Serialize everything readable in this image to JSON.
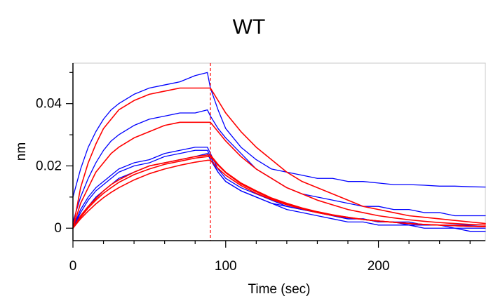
{
  "chart_data": {
    "type": "line",
    "title": "WT",
    "xlabel": "Time (sec)",
    "ylabel": "nm",
    "xlim": [
      0,
      270
    ],
    "ylim": [
      -0.004,
      0.053
    ],
    "xticks": [
      0,
      100,
      200
    ],
    "yticks": [
      0,
      0.02,
      0.04
    ],
    "xtick_labels": [
      "0",
      "100",
      "200"
    ],
    "ytick_labels": [
      "0",
      "0.02",
      "0.04"
    ],
    "dissociation_start_x": 90,
    "grid": false,
    "colors": {
      "data": "#0000ff",
      "fit": "#ff0000",
      "marker_line": "#ff0000",
      "axis": "#000000",
      "frame": "#c8c8c8"
    },
    "series": [
      {
        "role": "measured",
        "x": [
          0,
          5,
          10,
          15,
          20,
          25,
          30,
          40,
          50,
          60,
          70,
          80,
          88,
          90,
          95,
          100,
          110,
          120,
          130,
          140,
          150,
          160,
          170,
          180,
          190,
          200,
          210,
          220,
          230,
          240,
          250,
          260,
          270
        ],
        "y": [
          0.01,
          0.019,
          0.026,
          0.031,
          0.035,
          0.038,
          0.04,
          0.043,
          0.045,
          0.046,
          0.047,
          0.049,
          0.05,
          0.045,
          0.038,
          0.032,
          0.026,
          0.022,
          0.019,
          0.018,
          0.017,
          0.016,
          0.016,
          0.015,
          0.015,
          0.0145,
          0.014,
          0.014,
          0.0138,
          0.0135,
          0.0135,
          0.0133,
          0.0132
        ]
      },
      {
        "role": "measured",
        "x": [
          0,
          5,
          10,
          15,
          20,
          25,
          30,
          40,
          50,
          60,
          70,
          80,
          88,
          90,
          95,
          100,
          110,
          120,
          130,
          140,
          150,
          160,
          170,
          180,
          190,
          200,
          210,
          220,
          230,
          240,
          250,
          260,
          270
        ],
        "y": [
          0.002,
          0.01,
          0.016,
          0.021,
          0.025,
          0.028,
          0.03,
          0.033,
          0.035,
          0.036,
          0.037,
          0.037,
          0.038,
          0.036,
          0.032,
          0.029,
          0.024,
          0.019,
          0.016,
          0.013,
          0.011,
          0.01,
          0.009,
          0.008,
          0.007,
          0.007,
          0.006,
          0.006,
          0.005,
          0.005,
          0.004,
          0.004,
          0.004
        ]
      },
      {
        "role": "measured",
        "x": [
          0,
          5,
          10,
          15,
          20,
          25,
          30,
          40,
          50,
          60,
          70,
          80,
          88,
          90,
          95,
          100,
          110,
          120,
          130,
          140,
          150,
          160,
          170,
          180,
          190,
          200,
          210,
          220,
          230,
          240,
          250,
          260,
          270
        ],
        "y": [
          0.0,
          0.006,
          0.01,
          0.013,
          0.015,
          0.017,
          0.019,
          0.021,
          0.022,
          0.024,
          0.025,
          0.026,
          0.026,
          0.024,
          0.019,
          0.016,
          0.013,
          0.011,
          0.009,
          0.007,
          0.006,
          0.005,
          0.004,
          0.003,
          0.003,
          0.002,
          0.002,
          0.001,
          0.001,
          0.001,
          0.0,
          0.0,
          0.0
        ]
      },
      {
        "role": "measured",
        "x": [
          0,
          5,
          10,
          15,
          20,
          25,
          30,
          40,
          50,
          60,
          70,
          80,
          88,
          90,
          95,
          100,
          110,
          120,
          130,
          140,
          150,
          160,
          170,
          180,
          190,
          200,
          210,
          220,
          230,
          240,
          250,
          260,
          270
        ],
        "y": [
          0.0,
          0.005,
          0.009,
          0.012,
          0.014,
          0.016,
          0.018,
          0.02,
          0.021,
          0.023,
          0.024,
          0.025,
          0.025,
          0.023,
          0.018,
          0.015,
          0.012,
          0.01,
          0.008,
          0.006,
          0.005,
          0.004,
          0.003,
          0.002,
          0.002,
          0.001,
          0.001,
          0.001,
          0.0,
          0.0,
          0.0,
          -0.001,
          -0.001
        ]
      },
      {
        "role": "measured",
        "x": [
          0,
          5,
          10,
          15,
          20,
          25,
          30,
          40,
          50,
          60,
          70,
          80,
          88,
          90,
          95,
          100,
          110,
          120,
          130,
          140,
          150,
          160,
          170,
          180,
          190,
          200,
          210,
          220,
          230,
          240,
          250,
          260,
          270
        ],
        "y": [
          0.001,
          0.004,
          0.007,
          0.01,
          0.012,
          0.014,
          0.016,
          0.018,
          0.02,
          0.021,
          0.022,
          0.023,
          0.024,
          0.022,
          0.018,
          0.015,
          0.012,
          0.01,
          0.008,
          0.007,
          0.006,
          0.005,
          0.004,
          0.003,
          0.003,
          0.002,
          0.002,
          0.002,
          0.001,
          0.001,
          0.001,
          0.001,
          0.001
        ]
      },
      {
        "role": "fit",
        "x": [
          0,
          5,
          10,
          15,
          20,
          25,
          30,
          40,
          50,
          60,
          70,
          80,
          88,
          90,
          95,
          100,
          110,
          120,
          130,
          140,
          150,
          160,
          170,
          180,
          190,
          200,
          210,
          220,
          230,
          240,
          250,
          260,
          270
        ],
        "y": [
          0.0,
          0.013,
          0.021,
          0.027,
          0.032,
          0.035,
          0.038,
          0.041,
          0.043,
          0.044,
          0.045,
          0.045,
          0.045,
          0.045,
          0.041,
          0.037,
          0.031,
          0.026,
          0.022,
          0.018,
          0.015,
          0.013,
          0.011,
          0.009,
          0.007,
          0.006,
          0.005,
          0.004,
          0.0035,
          0.003,
          0.0025,
          0.002,
          0.0015
        ]
      },
      {
        "role": "fit",
        "x": [
          0,
          5,
          10,
          15,
          20,
          25,
          30,
          40,
          50,
          60,
          70,
          80,
          88,
          90,
          95,
          100,
          110,
          120,
          130,
          140,
          150,
          160,
          170,
          180,
          190,
          200,
          210,
          220,
          230,
          240,
          250,
          260,
          270
        ],
        "y": [
          0.0,
          0.008,
          0.013,
          0.018,
          0.021,
          0.024,
          0.026,
          0.029,
          0.031,
          0.033,
          0.034,
          0.034,
          0.034,
          0.034,
          0.031,
          0.028,
          0.023,
          0.019,
          0.016,
          0.013,
          0.011,
          0.009,
          0.0075,
          0.006,
          0.005,
          0.004,
          0.0033,
          0.0027,
          0.0022,
          0.0018,
          0.0015,
          0.0012,
          0.001
        ]
      },
      {
        "role": "fit",
        "x": [
          0,
          5,
          10,
          15,
          20,
          25,
          30,
          40,
          50,
          60,
          70,
          80,
          88,
          90,
          95,
          100,
          110,
          120,
          130,
          140,
          150,
          160,
          170,
          180,
          190,
          200,
          210,
          220,
          230,
          240,
          250,
          260,
          270
        ],
        "y": [
          0.0,
          0.004,
          0.007,
          0.0095,
          0.012,
          0.014,
          0.0155,
          0.018,
          0.02,
          0.021,
          0.022,
          0.023,
          0.0235,
          0.0235,
          0.0205,
          0.018,
          0.0145,
          0.012,
          0.0097,
          0.008,
          0.0065,
          0.0053,
          0.0043,
          0.0035,
          0.0028,
          0.0023,
          0.0019,
          0.0015,
          0.0012,
          0.001,
          0.0008,
          0.0006,
          0.0005
        ]
      },
      {
        "role": "fit",
        "x": [
          0,
          5,
          10,
          15,
          20,
          25,
          30,
          40,
          50,
          60,
          70,
          80,
          88,
          90,
          95,
          100,
          110,
          120,
          130,
          140,
          150,
          160,
          170,
          180,
          190,
          200,
          210,
          220,
          230,
          240,
          250,
          260,
          270
        ],
        "y": [
          0.0,
          0.0035,
          0.0065,
          0.009,
          0.0112,
          0.013,
          0.0147,
          0.0172,
          0.019,
          0.0205,
          0.0215,
          0.0225,
          0.023,
          0.023,
          0.0202,
          0.0178,
          0.0142,
          0.0117,
          0.0095,
          0.0078,
          0.0064,
          0.0052,
          0.0042,
          0.0035,
          0.0028,
          0.0023,
          0.0019,
          0.0015,
          0.0012,
          0.001,
          0.0008,
          0.0006,
          0.0005
        ]
      },
      {
        "role": "fit",
        "x": [
          0,
          5,
          10,
          15,
          20,
          25,
          30,
          40,
          50,
          60,
          70,
          80,
          88,
          90,
          95,
          100,
          110,
          120,
          130,
          140,
          150,
          160,
          170,
          180,
          190,
          200,
          210,
          220,
          230,
          240,
          250,
          260,
          270
        ],
        "y": [
          0.0,
          0.003,
          0.0055,
          0.0078,
          0.0098,
          0.0115,
          0.013,
          0.0155,
          0.0175,
          0.019,
          0.0202,
          0.0212,
          0.0218,
          0.0218,
          0.0192,
          0.017,
          0.0137,
          0.0112,
          0.0092,
          0.0075,
          0.0062,
          0.005,
          0.0041,
          0.0034,
          0.0028,
          0.0023,
          0.0019,
          0.0015,
          0.0012,
          0.001,
          0.0008,
          0.0006,
          0.0005
        ]
      }
    ]
  }
}
